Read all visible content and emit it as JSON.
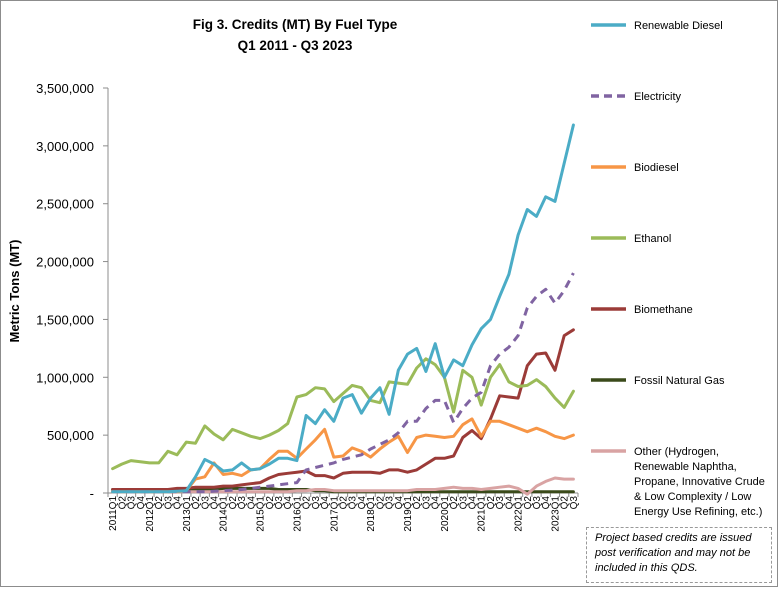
{
  "chart_data": {
    "type": "line",
    "title": "Fig 3. Credits (MT) By Fuel Type",
    "subtitle": "Q1 2011 - Q3 2023",
    "ylabel": "Metric Tons (MT)",
    "xlabel": "",
    "ylim": [
      0,
      3500000
    ],
    "yticks": [
      0,
      500000,
      1000000,
      1500000,
      2000000,
      2500000,
      3000000,
      3500000
    ],
    "ytick_labels": [
      "-",
      "500,000",
      "1,000,000",
      "1,500,000",
      "2,000,000",
      "2,500,000",
      "3,000,000",
      "3,500,000"
    ],
    "grid": false,
    "legend_position": "right",
    "x": [
      "2011Q1",
      "Q2",
      "Q3",
      "Q4",
      "2012Q1",
      "Q2",
      "Q3",
      "Q4",
      "2013Q1",
      "Q2",
      "Q3",
      "Q4",
      "2014Q1",
      "Q2",
      "Q3",
      "Q4",
      "2015Q1",
      "Q2",
      "Q3",
      "Q4",
      "2016Q1",
      "Q2",
      "Q3",
      "Q4",
      "2017Q1",
      "Q2",
      "Q3",
      "Q4",
      "2018Q1",
      "Q2",
      "Q3",
      "Q4",
      "2019Q1",
      "Q2",
      "Q3",
      "Q4",
      "2020Q1",
      "Q2",
      "Q3",
      "Q4",
      "2021Q1",
      "Q2",
      "Q3",
      "Q4",
      "2022Q1",
      "Q2",
      "Q3",
      "Q4",
      "2023Q1",
      "Q2",
      "Q3"
    ],
    "series": [
      {
        "name": "Renewable Diesel",
        "color": "#4bacc6",
        "style": "solid",
        "values": [
          10000,
          10000,
          10000,
          10000,
          10000,
          10000,
          10000,
          15000,
          20000,
          140000,
          290000,
          250000,
          190000,
          200000,
          260000,
          200000,
          210000,
          250000,
          300000,
          300000,
          280000,
          670000,
          600000,
          720000,
          620000,
          820000,
          850000,
          690000,
          820000,
          910000,
          680000,
          1060000,
          1200000,
          1250000,
          1050000,
          1290000,
          1000000,
          1150000,
          1100000,
          1280000,
          1420000,
          1500000,
          1700000,
          1890000,
          2230000,
          2450000,
          2390000,
          2560000,
          2520000,
          2850000,
          3180000
        ]
      },
      {
        "name": "Electricity",
        "color": "#8064a2",
        "style": "dash",
        "values": [
          10000,
          10000,
          10000,
          10000,
          10000,
          10000,
          10000,
          10000,
          10000,
          10000,
          10000,
          15000,
          20000,
          25000,
          30000,
          40000,
          50000,
          60000,
          70000,
          80000,
          90000,
          200000,
          220000,
          240000,
          260000,
          290000,
          310000,
          330000,
          380000,
          420000,
          460000,
          520000,
          620000,
          620000,
          730000,
          800000,
          800000,
          610000,
          730000,
          820000,
          870000,
          1100000,
          1200000,
          1260000,
          1360000,
          1600000,
          1700000,
          1760000,
          1640000,
          1750000,
          1900000
        ]
      },
      {
        "name": "Biodiesel",
        "color": "#f79646",
        "style": "solid",
        "values": [
          10000,
          10000,
          10000,
          10000,
          10000,
          10000,
          10000,
          10000,
          20000,
          120000,
          140000,
          260000,
          160000,
          170000,
          150000,
          200000,
          210000,
          290000,
          360000,
          360000,
          300000,
          380000,
          460000,
          550000,
          310000,
          320000,
          390000,
          360000,
          310000,
          380000,
          440000,
          490000,
          350000,
          480000,
          500000,
          490000,
          480000,
          490000,
          590000,
          640000,
          490000,
          620000,
          620000,
          590000,
          560000,
          530000,
          560000,
          530000,
          490000,
          470000,
          500000
        ]
      },
      {
        "name": "Ethanol",
        "color": "#9bbb59",
        "style": "solid",
        "values": [
          210000,
          250000,
          280000,
          270000,
          260000,
          260000,
          360000,
          330000,
          440000,
          430000,
          580000,
          510000,
          460000,
          550000,
          520000,
          490000,
          470000,
          500000,
          540000,
          600000,
          830000,
          850000,
          910000,
          900000,
          790000,
          860000,
          930000,
          910000,
          800000,
          780000,
          960000,
          950000,
          940000,
          1080000,
          1160000,
          1110000,
          1000000,
          700000,
          1060000,
          1000000,
          760000,
          1000000,
          1110000,
          960000,
          920000,
          930000,
          980000,
          920000,
          820000,
          740000,
          880000
        ]
      },
      {
        "name": "Biomethane",
        "color": "#9b3b38",
        "style": "solid",
        "values": [
          30000,
          30000,
          30000,
          30000,
          30000,
          30000,
          30000,
          40000,
          40000,
          50000,
          50000,
          50000,
          60000,
          60000,
          70000,
          80000,
          90000,
          130000,
          160000,
          170000,
          180000,
          190000,
          150000,
          150000,
          130000,
          170000,
          180000,
          180000,
          180000,
          170000,
          200000,
          200000,
          180000,
          200000,
          250000,
          300000,
          300000,
          320000,
          480000,
          540000,
          470000,
          640000,
          840000,
          830000,
          820000,
          1100000,
          1200000,
          1210000,
          1060000,
          1360000,
          1410000
        ]
      },
      {
        "name": "Fossil Natural Gas",
        "color": "#3a4a1a",
        "style": "solid",
        "values": [
          30000,
          30000,
          30000,
          30000,
          30000,
          30000,
          30000,
          30000,
          30000,
          30000,
          30000,
          30000,
          40000,
          40000,
          40000,
          40000,
          40000,
          40000,
          30000,
          30000,
          30000,
          30000,
          20000,
          20000,
          10000,
          10000,
          10000,
          10000,
          10000,
          10000,
          10000,
          10000,
          10000,
          10000,
          10000,
          10000,
          10000,
          10000,
          10000,
          10000,
          10000,
          10000,
          10000,
          10000,
          10000,
          10000,
          10000,
          10000,
          10000,
          10000,
          10000
        ]
      },
      {
        "name": "Other (Hydrogen, Renewable Naphtha, Propane, Innovative Crude & Low Complexity / Low Energy Use Refining, etc.)",
        "legend_lines": [
          "Other (Hydrogen,",
          "Renewable Naphtha,",
          "Propane, Innovative Crude",
          "& Low Complexity / Low",
          "Energy Use Refining, etc.)"
        ],
        "color": "#d9a3a3",
        "style": "solid",
        "values": [
          10000,
          10000,
          10000,
          10000,
          10000,
          10000,
          10000,
          10000,
          10000,
          10000,
          10000,
          10000,
          10000,
          10000,
          10000,
          10000,
          10000,
          10000,
          10000,
          10000,
          20000,
          20000,
          30000,
          30000,
          20000,
          20000,
          20000,
          20000,
          20000,
          20000,
          20000,
          20000,
          20000,
          30000,
          30000,
          30000,
          40000,
          50000,
          40000,
          40000,
          30000,
          40000,
          50000,
          60000,
          40000,
          -10000,
          60000,
          100000,
          130000,
          120000,
          120000
        ]
      }
    ]
  },
  "note": "Project based credits are issued post verification and may not be included in this QDS."
}
